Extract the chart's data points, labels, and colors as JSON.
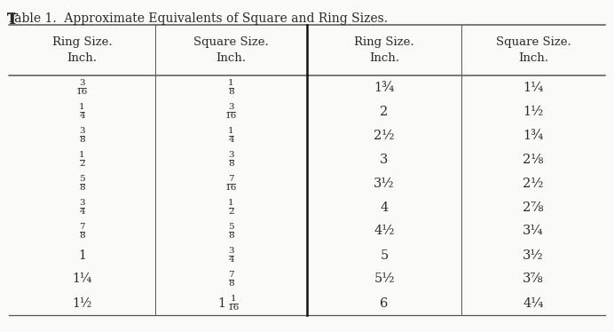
{
  "title": "Table 1.  Approximate Equivalents of Square and Ring Sizes.",
  "col_headers": [
    "Ring Size.\nInch.",
    "Square Size.\nInch.",
    "Ring Size.\nInch.",
    "Square Size.\nInch."
  ],
  "col1_display": [
    "3\n—\n16",
    "1\n—\n4",
    "3\n—\n8",
    "1\n—\n2",
    "5\n—\n8",
    "3\n—\n4",
    "7\n—\n8",
    "1",
    "1¼",
    "1½"
  ],
  "col2_display": [
    "1\n—\n8",
    "3\n—\n16",
    "1\n—\n4",
    "3\n—\n8",
    "7\n—\n16",
    "1\n—\n2",
    "5\n—\n8",
    "3\n—\n4",
    "7\n—\n8",
    "1 1\n  —\n  16"
  ],
  "col3_display": [
    "1¾",
    "2",
    "2½",
    "3",
    "3½",
    "4",
    "4½",
    "5",
    "5½",
    "6"
  ],
  "col4_display": [
    "1¼",
    "1½",
    "1¾",
    "2⅛",
    "2½",
    "2⅞",
    "3¼",
    "3½",
    "3⅞",
    "4¼"
  ],
  "col1_lines": [
    3,
    3,
    3,
    3,
    3,
    3,
    3,
    1,
    1,
    1
  ],
  "col2_lines": [
    3,
    3,
    3,
    3,
    3,
    3,
    3,
    3,
    3,
    3
  ],
  "bg_color": "#fafaf8",
  "text_color": "#2a2a2a",
  "line_color": "#555555",
  "mid_line_color": "#111111"
}
